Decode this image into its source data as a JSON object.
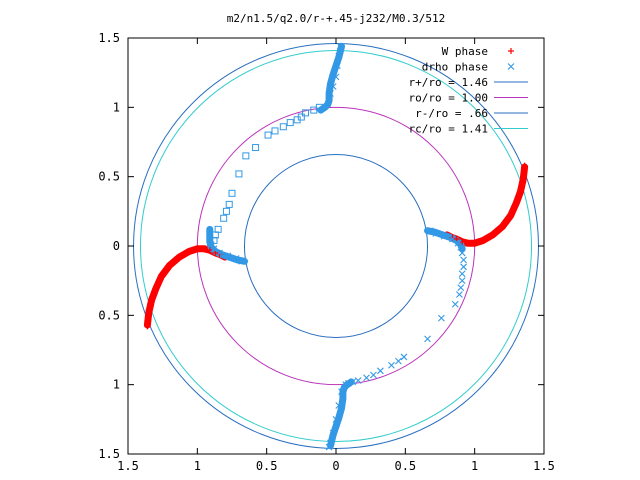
{
  "chart_data": {
    "type": "scatter",
    "title": "m2/n1.5/q2.0/r-+.45-j232/M0.3/512",
    "xlabel": "",
    "ylabel": "",
    "xlim": [
      -1.5,
      1.5
    ],
    "ylim": [
      -1.5,
      1.5
    ],
    "x_tick_values": [
      -1.5,
      -1,
      -0.5,
      0,
      0.5,
      1,
      1.5
    ],
    "x_tick_labels": [
      "1.5",
      "1",
      "0.5",
      "0",
      "0.5",
      "1",
      "1.5"
    ],
    "y_tick_values": [
      1.5,
      1,
      0.5,
      0,
      -0.5,
      -1,
      -1.5
    ],
    "y_tick_labels": [
      "1.5",
      "1",
      "0.5",
      "0",
      "0.5",
      "1",
      "1.5"
    ],
    "grid": false,
    "legend_position": "top-right",
    "series": [
      {
        "name": "W phase",
        "kind": "points",
        "marker": "plus",
        "color": "#ff0000",
        "points": [
          [
            -1.36,
            -0.58
          ],
          [
            -1.36,
            -0.54
          ],
          [
            -1.35,
            -0.5
          ],
          [
            -1.35,
            -0.46
          ],
          [
            -1.34,
            -0.42
          ],
          [
            -1.33,
            -0.38
          ],
          [
            -1.31,
            -0.33
          ],
          [
            -1.29,
            -0.28
          ],
          [
            -1.26,
            -0.22
          ],
          [
            -1.22,
            -0.16
          ],
          [
            -1.17,
            -0.11
          ],
          [
            -1.12,
            -0.07
          ],
          [
            -1.06,
            -0.04
          ],
          [
            -1.01,
            -0.02
          ],
          [
            -0.96,
            -0.02
          ],
          [
            -0.91,
            -0.03
          ],
          [
            -0.87,
            -0.05
          ],
          [
            -0.84,
            -0.06
          ],
          [
            1.36,
            0.58
          ],
          [
            1.36,
            0.54
          ],
          [
            1.35,
            0.5
          ],
          [
            1.35,
            0.46
          ],
          [
            1.34,
            0.42
          ],
          [
            1.33,
            0.38
          ],
          [
            1.31,
            0.33
          ],
          [
            1.29,
            0.28
          ],
          [
            1.26,
            0.22
          ],
          [
            1.22,
            0.16
          ],
          [
            1.17,
            0.11
          ],
          [
            1.12,
            0.07
          ],
          [
            1.06,
            0.04
          ],
          [
            1.01,
            0.02
          ],
          [
            0.96,
            0.02
          ],
          [
            0.91,
            0.03
          ],
          [
            0.87,
            0.05
          ],
          [
            0.84,
            0.06
          ]
        ]
      },
      {
        "name": "drho phase",
        "kind": "points",
        "marker": "cross",
        "color": "#3399e6",
        "points": [
          [
            -0.68,
            -0.11
          ],
          [
            -0.72,
            -0.09
          ],
          [
            -0.78,
            -0.07
          ],
          [
            -0.84,
            -0.05
          ],
          [
            -0.88,
            -0.02
          ],
          [
            -0.9,
            0.01
          ],
          [
            -0.91,
            0.05
          ],
          [
            -0.91,
            0.1
          ],
          [
            0.68,
            0.11
          ],
          [
            0.72,
            0.09
          ],
          [
            0.78,
            0.07
          ],
          [
            0.84,
            0.05
          ],
          [
            0.88,
            0.02
          ],
          [
            0.9,
            -0.01
          ],
          [
            0.91,
            -0.05
          ],
          [
            0.92,
            -0.1
          ],
          [
            0.92,
            -0.15
          ],
          [
            0.91,
            -0.2
          ],
          [
            0.91,
            -0.25
          ],
          [
            0.9,
            -0.3
          ],
          [
            0.89,
            -0.35
          ],
          [
            0.86,
            -0.42
          ],
          [
            0.76,
            -0.52
          ],
          [
            0.66,
            -0.67
          ],
          [
            0.49,
            -0.8
          ],
          [
            0.45,
            -0.83
          ],
          [
            0.4,
            -0.86
          ],
          [
            0.32,
            -0.9
          ],
          [
            0.27,
            -0.93
          ],
          [
            0.22,
            -0.95
          ],
          [
            0.16,
            -0.97
          ],
          [
            0.12,
            -0.98
          ],
          [
            0.09,
            -0.99
          ],
          [
            0.07,
            -1.0
          ],
          [
            0.04,
            -1.05
          ],
          [
            0.02,
            -1.15
          ],
          [
            0.0,
            -1.25
          ],
          [
            -0.02,
            -1.35
          ],
          [
            -0.04,
            -1.42
          ],
          [
            -0.05,
            -1.45
          ],
          [
            -0.04,
            1.1
          ],
          [
            -0.02,
            1.15
          ],
          [
            0.0,
            1.22
          ],
          [
            0.01,
            1.3
          ],
          [
            0.02,
            1.37
          ],
          [
            0.03,
            1.44
          ]
        ]
      },
      {
        "name": "",
        "kind": "points",
        "marker": "square",
        "color": "#3399e6",
        "points": [
          [
            -0.12,
            1.0
          ],
          [
            -0.16,
            0.98
          ],
          [
            -0.22,
            0.96
          ],
          [
            -0.25,
            0.93
          ],
          [
            -0.28,
            0.91
          ],
          [
            -0.33,
            0.89
          ],
          [
            -0.38,
            0.86
          ],
          [
            -0.44,
            0.83
          ],
          [
            -0.49,
            0.8
          ],
          [
            -0.58,
            0.71
          ],
          [
            -0.65,
            0.65
          ],
          [
            -0.7,
            0.52
          ],
          [
            -0.75,
            0.38
          ],
          [
            -0.77,
            0.3
          ],
          [
            -0.79,
            0.25
          ],
          [
            -0.81,
            0.2
          ],
          [
            -0.85,
            0.12
          ],
          [
            -0.87,
            0.08
          ],
          [
            -0.88,
            0.04
          ]
        ]
      },
      {
        "name": "r+/ro = 1.46",
        "kind": "circle",
        "radius": 1.46,
        "color": "#2a6fc0"
      },
      {
        "name": "ro/ro = 1.00",
        "kind": "circle",
        "radius": 1.0,
        "color": "#bb33bb"
      },
      {
        "name": "r-/ro = .66",
        "kind": "circle",
        "radius": 0.66,
        "color": "#2a6fc0"
      },
      {
        "name": "rc/ro = 1.41",
        "kind": "circle",
        "radius": 1.41,
        "color": "#33cccc"
      }
    ],
    "curves": [
      {
        "name": "W phase",
        "color": "#ff0000",
        "x": [
          -1.36,
          -1.35,
          -1.33,
          -1.3,
          -1.26,
          -1.2,
          -1.13,
          -1.06,
          -1.0,
          -0.95,
          -0.91,
          -0.87,
          -0.84,
          -0.8
        ],
        "y": [
          -0.57,
          -0.48,
          -0.39,
          -0.31,
          -0.22,
          -0.14,
          -0.08,
          -0.04,
          -0.02,
          -0.02,
          -0.03,
          -0.05,
          -0.06,
          -0.08
        ]
      },
      {
        "name": "W phase",
        "color": "#ff0000",
        "x": [
          1.36,
          1.35,
          1.33,
          1.3,
          1.26,
          1.2,
          1.13,
          1.06,
          1.0,
          0.95,
          0.91,
          0.87,
          0.84,
          0.8
        ],
        "y": [
          0.57,
          0.48,
          0.39,
          0.31,
          0.22,
          0.14,
          0.08,
          0.04,
          0.02,
          0.02,
          0.03,
          0.05,
          0.06,
          0.08
        ]
      },
      {
        "name": "drho phase",
        "color": "#3399e6",
        "x": [
          -0.66,
          -0.71,
          -0.77,
          -0.83,
          -0.87,
          -0.9,
          -0.91,
          -0.91,
          -0.91
        ],
        "y": [
          -0.11,
          -0.1,
          -0.08,
          -0.06,
          -0.04,
          -0.01,
          0.03,
          0.07,
          0.12
        ]
      },
      {
        "name": "drho phase",
        "color": "#3399e6",
        "x": [
          0.66,
          0.71,
          0.77,
          0.83,
          0.87,
          0.9,
          0.91
        ],
        "y": [
          0.11,
          0.1,
          0.08,
          0.06,
          0.04,
          0.01,
          -0.02
        ]
      },
      {
        "name": "drho phase",
        "color": "#3399e6",
        "x": [
          0.11,
          0.08,
          0.06,
          0.05,
          0.05,
          0.04,
          0.02,
          0.0,
          -0.02,
          -0.03,
          -0.04
        ],
        "y": [
          -0.98,
          -1.0,
          -1.02,
          -1.05,
          -1.1,
          -1.17,
          -1.24,
          -1.3,
          -1.36,
          -1.4,
          -1.44
        ]
      },
      {
        "name": "drho phase",
        "color": "#3399e6",
        "x": [
          -0.11,
          -0.08,
          -0.06,
          -0.05,
          -0.05,
          -0.04,
          -0.02,
          0.0,
          0.02,
          0.03,
          0.04
        ],
        "y": [
          0.98,
          1.0,
          1.02,
          1.05,
          1.1,
          1.17,
          1.24,
          1.3,
          1.36,
          1.4,
          1.44
        ]
      }
    ]
  }
}
